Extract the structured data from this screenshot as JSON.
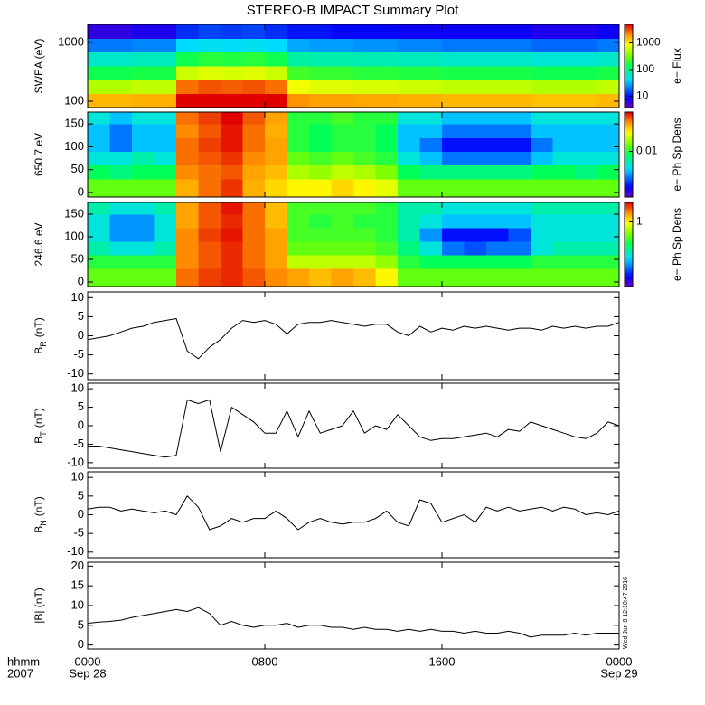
{
  "title": "STEREO-B IMPACT Summary Plot",
  "xlim": [
    0,
    24
  ],
  "xticks": [
    {
      "value": 0,
      "label": "0000"
    },
    {
      "value": 8,
      "label": "0800"
    },
    {
      "value": 16,
      "label": "1600"
    },
    {
      "value": 24,
      "label": "0000"
    }
  ],
  "x_dates": [
    {
      "value": 0,
      "label": "Sep 28"
    },
    {
      "value": 24,
      "label": "Sep 29"
    }
  ],
  "x_axis_title": [
    "hhmm",
    "2007"
  ],
  "timestamp": "Wed Jun 8 12:10:47 2016",
  "chart_data": [
    {
      "type": "heatmap",
      "ylabel": "SWEA (eV)",
      "ylog": true,
      "ylim": [
        78,
        2030
      ],
      "yticks": [
        100,
        1000
      ],
      "x": [
        0.5,
        1.5,
        2.5,
        3.5,
        4.5,
        5.5,
        6.5,
        7.5,
        8.5,
        9.5,
        10.5,
        11.5,
        12.5,
        13.5,
        14.5,
        15.5,
        16.5,
        17.5,
        18.5,
        19.5,
        20.5,
        21.5,
        22.5,
        23.5
      ],
      "y": [
        102,
        176,
        303,
        522,
        900,
        1549
      ],
      "z": [
        [
          1500,
          1500,
          1600,
          1600,
          5000,
          5500,
          5000,
          5500,
          5000,
          2000,
          1800,
          1800,
          1700,
          1700,
          1600,
          1600,
          1500,
          1500,
          1500,
          1500,
          1400,
          1400,
          1400,
          1500
        ],
        [
          500,
          500,
          550,
          550,
          2500,
          3000,
          2800,
          3000,
          2500,
          800,
          700,
          700,
          650,
          650,
          600,
          600,
          550,
          550,
          550,
          550,
          500,
          500,
          500,
          550
        ],
        [
          150,
          150,
          160,
          160,
          600,
          700,
          650,
          700,
          600,
          220,
          200,
          200,
          180,
          180,
          170,
          170,
          160,
          160,
          160,
          160,
          150,
          150,
          150,
          160
        ],
        [
          60,
          60,
          65,
          65,
          150,
          180,
          170,
          180,
          150,
          80,
          75,
          75,
          70,
          70,
          65,
          65,
          60,
          60,
          60,
          60,
          55,
          55,
          55,
          60
        ],
        [
          20,
          20,
          22,
          22,
          40,
          45,
          42,
          45,
          40,
          28,
          26,
          26,
          24,
          24,
          22,
          22,
          20,
          20,
          20,
          20,
          18,
          18,
          18,
          20
        ],
        [
          6,
          6,
          7,
          7,
          12,
          14,
          13,
          14,
          12,
          10,
          10,
          9,
          9,
          9,
          8,
          8,
          8,
          8,
          8,
          8,
          7,
          7,
          7,
          8
        ]
      ],
      "colorbar": {
        "label": "e− Flux",
        "log": true,
        "lim": [
          3.7,
          5000
        ],
        "ticks": [
          10,
          100,
          1000
        ]
      }
    },
    {
      "type": "heatmap",
      "ylabel": "650.7 eV",
      "ylog": false,
      "ylim": [
        -10,
        176
      ],
      "yticks": [
        0,
        50,
        100,
        150
      ],
      "x": [
        0.5,
        1.5,
        2.5,
        3.5,
        4.5,
        5.5,
        6.5,
        7.5,
        8.5,
        9.5,
        10.5,
        11.5,
        12.5,
        13.5,
        14.5,
        15.5,
        16.5,
        17.5,
        18.5,
        19.5,
        20.5,
        21.5,
        22.5,
        23.5
      ],
      "y": [
        15,
        45,
        75,
        105,
        135,
        165
      ],
      "z": [
        [
          0.012,
          0.012,
          0.012,
          0.012,
          0.025,
          0.03,
          0.035,
          0.025,
          0.022,
          0.02,
          0.02,
          0.022,
          0.02,
          0.018,
          0.012,
          0.012,
          0.012,
          0.012,
          0.012,
          0.012,
          0.012,
          0.012,
          0.012,
          0.012
        ],
        [
          0.009,
          0.008,
          0.009,
          0.009,
          0.028,
          0.03,
          0.032,
          0.026,
          0.024,
          0.015,
          0.014,
          0.016,
          0.015,
          0.013,
          0.009,
          0.008,
          0.008,
          0.008,
          0.008,
          0.008,
          0.009,
          0.009,
          0.008,
          0.009
        ],
        [
          0.006,
          0.006,
          0.007,
          0.006,
          0.03,
          0.032,
          0.035,
          0.028,
          0.026,
          0.012,
          0.011,
          0.012,
          0.011,
          0.01,
          0.006,
          0.005,
          0.004,
          0.004,
          0.004,
          0.004,
          0.005,
          0.006,
          0.006,
          0.006
        ],
        [
          0.005,
          0.004,
          0.005,
          0.005,
          0.03,
          0.034,
          0.038,
          0.03,
          0.026,
          0.01,
          0.009,
          0.01,
          0.01,
          0.009,
          0.005,
          0.004,
          0.003,
          0.003,
          0.003,
          0.003,
          0.004,
          0.005,
          0.005,
          0.005
        ],
        [
          0.005,
          0.004,
          0.005,
          0.005,
          0.028,
          0.032,
          0.038,
          0.03,
          0.025,
          0.01,
          0.009,
          0.01,
          0.01,
          0.009,
          0.005,
          0.005,
          0.004,
          0.004,
          0.004,
          0.004,
          0.005,
          0.005,
          0.005,
          0.005
        ],
        [
          0.006,
          0.005,
          0.006,
          0.006,
          0.03,
          0.034,
          0.04,
          0.032,
          0.026,
          0.01,
          0.01,
          0.011,
          0.01,
          0.01,
          0.006,
          0.006,
          0.005,
          0.005,
          0.005,
          0.005,
          0.006,
          0.006,
          0.006,
          0.006
        ]
      ],
      "colorbar": {
        "label": "e− Ph Sp Dens",
        "log": true,
        "lim": [
          0.002,
          0.04
        ],
        "ticks": [
          0.01
        ]
      }
    },
    {
      "type": "heatmap",
      "ylabel": "246.6 eV",
      "ylog": false,
      "ylim": [
        -10,
        176
      ],
      "yticks": [
        0,
        50,
        100,
        150
      ],
      "x": [
        0.5,
        1.5,
        2.5,
        3.5,
        4.5,
        5.5,
        6.5,
        7.5,
        8.5,
        9.5,
        10.5,
        11.5,
        12.5,
        13.5,
        14.5,
        15.5,
        16.5,
        17.5,
        18.5,
        19.5,
        20.5,
        21.5,
        22.5,
        23.5
      ],
      "y": [
        15,
        45,
        75,
        105,
        135,
        165
      ],
      "z": [
        [
          0.6,
          0.6,
          0.6,
          0.6,
          1.5,
          1.7,
          1.8,
          1.6,
          1.4,
          1.3,
          1.2,
          1.3,
          1.2,
          1.0,
          0.6,
          0.6,
          0.6,
          0.6,
          0.6,
          0.6,
          0.6,
          0.6,
          0.6,
          0.6
        ],
        [
          0.5,
          0.5,
          0.5,
          0.5,
          1.4,
          1.6,
          1.8,
          1.5,
          1.3,
          0.8,
          0.8,
          0.8,
          0.8,
          0.7,
          0.5,
          0.45,
          0.45,
          0.45,
          0.45,
          0.45,
          0.5,
          0.5,
          0.5,
          0.5
        ],
        [
          0.35,
          0.3,
          0.3,
          0.35,
          1.4,
          1.6,
          1.8,
          1.5,
          1.3,
          0.6,
          0.6,
          0.6,
          0.6,
          0.55,
          0.4,
          0.3,
          0.2,
          0.18,
          0.2,
          0.2,
          0.3,
          0.35,
          0.35,
          0.35
        ],
        [
          0.3,
          0.22,
          0.22,
          0.3,
          1.4,
          1.7,
          1.9,
          1.5,
          1.3,
          0.55,
          0.55,
          0.55,
          0.55,
          0.5,
          0.35,
          0.22,
          0.15,
          0.15,
          0.15,
          0.18,
          0.3,
          0.3,
          0.3,
          0.3
        ],
        [
          0.3,
          0.22,
          0.22,
          0.3,
          1.3,
          1.6,
          1.8,
          1.5,
          1.2,
          0.55,
          0.5,
          0.55,
          0.5,
          0.5,
          0.35,
          0.3,
          0.25,
          0.25,
          0.25,
          0.25,
          0.3,
          0.3,
          0.3,
          0.3
        ],
        [
          0.35,
          0.3,
          0.3,
          0.35,
          1.3,
          1.6,
          1.9,
          1.5,
          1.2,
          0.55,
          0.55,
          0.55,
          0.55,
          0.5,
          0.35,
          0.35,
          0.3,
          0.3,
          0.3,
          0.3,
          0.35,
          0.35,
          0.35,
          0.35
        ]
      ],
      "colorbar": {
        "label": "e− Ph Sp Dens",
        "log": true,
        "lim": [
          0.1,
          2
        ],
        "ticks": [
          1
        ]
      }
    },
    {
      "type": "line",
      "ylabel": "B",
      "ylabel_sub": "R",
      "ylabel_unit": "(nT)",
      "color": "#000000",
      "ylim": [
        -11.5,
        11.5
      ],
      "yticks": [
        -10,
        -5,
        0,
        5,
        10
      ],
      "x": [
        0,
        0.5,
        1,
        1.5,
        2,
        2.5,
        3,
        3.5,
        4,
        4.5,
        5,
        5.5,
        6,
        6.5,
        7,
        7.5,
        8,
        8.5,
        9,
        9.5,
        10,
        10.5,
        11,
        11.5,
        12,
        12.5,
        13,
        13.5,
        14,
        14.5,
        15,
        15.5,
        16,
        16.5,
        17,
        17.5,
        18,
        18.5,
        19,
        19.5,
        20,
        20.5,
        21,
        21.5,
        22,
        22.5,
        23,
        23.5,
        24
      ],
      "values": [
        -1,
        -0.5,
        0,
        1,
        2,
        2.5,
        3.5,
        4,
        4.5,
        -4,
        -6,
        -3,
        -1,
        2,
        4,
        3.5,
        4,
        3,
        0.5,
        3,
        3.5,
        3.5,
        4,
        3.5,
        3,
        2.5,
        3,
        3,
        1,
        0,
        2.5,
        1,
        2,
        1.5,
        2.5,
        2,
        2.5,
        2,
        1.5,
        2,
        2,
        1.5,
        2.5,
        2,
        2.5,
        2,
        2.5,
        2.5,
        3.5
      ]
    },
    {
      "type": "line",
      "ylabel": "B",
      "ylabel_sub": "T",
      "ylabel_unit": "(nT)",
      "color": "#000000",
      "ylim": [
        -11.5,
        11.5
      ],
      "yticks": [
        -10,
        -5,
        0,
        5,
        10
      ],
      "x": [
        0,
        0.5,
        1,
        1.5,
        2,
        2.5,
        3,
        3.5,
        4,
        4.5,
        5,
        5.5,
        6,
        6.5,
        7,
        7.5,
        8,
        8.5,
        9,
        9.5,
        10,
        10.5,
        11,
        11.5,
        12,
        12.5,
        13,
        13.5,
        14,
        14.5,
        15,
        15.5,
        16,
        16.5,
        17,
        17.5,
        18,
        18.5,
        19,
        19.5,
        20,
        20.5,
        21,
        21.5,
        22,
        22.5,
        23,
        23.5,
        24
      ],
      "values": [
        -5.5,
        -5.5,
        -6,
        -6.5,
        -7,
        -7.5,
        -8,
        -8.5,
        -8,
        7,
        6,
        7,
        -7,
        5,
        3,
        1,
        -2,
        -2,
        4,
        -3,
        4,
        -2,
        -1,
        0,
        4,
        -2,
        0,
        -1,
        3,
        0,
        -3,
        -4,
        -3.5,
        -3.5,
        -3,
        -2.5,
        -2,
        -3,
        -1,
        -1.5,
        1,
        0,
        -1,
        -2,
        -3,
        -3.5,
        -2,
        1,
        0
      ]
    },
    {
      "type": "line",
      "ylabel": "B",
      "ylabel_sub": "N",
      "ylabel_unit": "(nT)",
      "color": "#000000",
      "ylim": [
        -11.5,
        11.5
      ],
      "yticks": [
        -10,
        -5,
        0,
        5,
        10
      ],
      "x": [
        0,
        0.5,
        1,
        1.5,
        2,
        2.5,
        3,
        3.5,
        4,
        4.5,
        5,
        5.5,
        6,
        6.5,
        7,
        7.5,
        8,
        8.5,
        9,
        9.5,
        10,
        10.5,
        11,
        11.5,
        12,
        12.5,
        13,
        13.5,
        14,
        14.5,
        15,
        15.5,
        16,
        16.5,
        17,
        17.5,
        18,
        18.5,
        19,
        19.5,
        20,
        20.5,
        21,
        21.5,
        22,
        22.5,
        23,
        23.5,
        24
      ],
      "values": [
        1.5,
        2,
        2,
        1,
        1.5,
        1,
        0.5,
        1,
        0,
        5,
        2,
        -4,
        -3,
        -1,
        -2,
        -1,
        -1,
        1,
        -1,
        -4,
        -2,
        -1,
        -2,
        -2.5,
        -2,
        -2,
        -1,
        1,
        -2,
        -3,
        4,
        3,
        -2,
        -1,
        0,
        -2,
        2,
        1,
        2,
        1,
        1.5,
        2,
        1,
        2,
        1.5,
        0,
        0.5,
        0,
        1
      ]
    },
    {
      "type": "line",
      "ylabel": "|B| (nT)",
      "color": "#000000",
      "ylim": [
        -1,
        21
      ],
      "yticks": [
        0,
        5,
        10,
        15,
        20
      ],
      "x": [
        0,
        0.5,
        1,
        1.5,
        2,
        2.5,
        3,
        3.5,
        4,
        4.5,
        5,
        5.5,
        6,
        6.5,
        7,
        7.5,
        8,
        8.5,
        9,
        9.5,
        10,
        10.5,
        11,
        11.5,
        12,
        12.5,
        13,
        13.5,
        14,
        14.5,
        15,
        15.5,
        16,
        16.5,
        17,
        17.5,
        18,
        18.5,
        19,
        19.5,
        20,
        20.5,
        21,
        21.5,
        22,
        22.5,
        23,
        23.5,
        24
      ],
      "values": [
        5.5,
        5.8,
        6,
        6.3,
        7,
        7.5,
        8,
        8.5,
        9,
        8.5,
        9.5,
        8,
        5,
        6,
        5,
        4.5,
        5,
        5,
        5.5,
        4.5,
        5,
        5,
        4.5,
        4.5,
        4,
        4.5,
        4,
        4,
        3.5,
        4,
        3.5,
        4,
        3.5,
        3.5,
        3,
        3.5,
        3,
        3,
        3.5,
        3,
        2,
        2.5,
        2.5,
        2.5,
        3,
        2.5,
        3,
        3,
        3
      ]
    }
  ]
}
